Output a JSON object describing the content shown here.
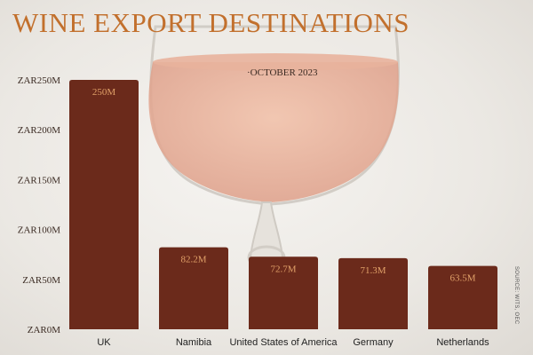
{
  "chart_data": {
    "type": "bar",
    "title": "WINE EXPORT DESTINATIONS",
    "subtitle": "OCTOBER 2023",
    "categories": [
      "UK",
      "Namibia",
      "United States of America",
      "Germany",
      "Netherlands"
    ],
    "values": [
      250,
      82.2,
      72.7,
      71.3,
      63.5
    ],
    "value_labels": [
      "250M",
      "82.2M",
      "72.7M",
      "71.3M",
      "63.5M"
    ],
    "yticks": [
      0,
      50,
      100,
      150,
      200,
      250
    ],
    "ytick_labels": [
      "ZAR0M",
      "ZAR50M",
      "ZAR100M",
      "ZAR150M",
      "ZAR200M",
      "ZAR250M"
    ],
    "ylim": [
      0,
      250
    ],
    "xlabel": "",
    "ylabel": "",
    "grid": false,
    "bar_color": "#6b2a1b",
    "value_label_color": "#e0a068",
    "title_color": "#c2702d"
  },
  "source_text": "SOURCE: WITS, OEC"
}
